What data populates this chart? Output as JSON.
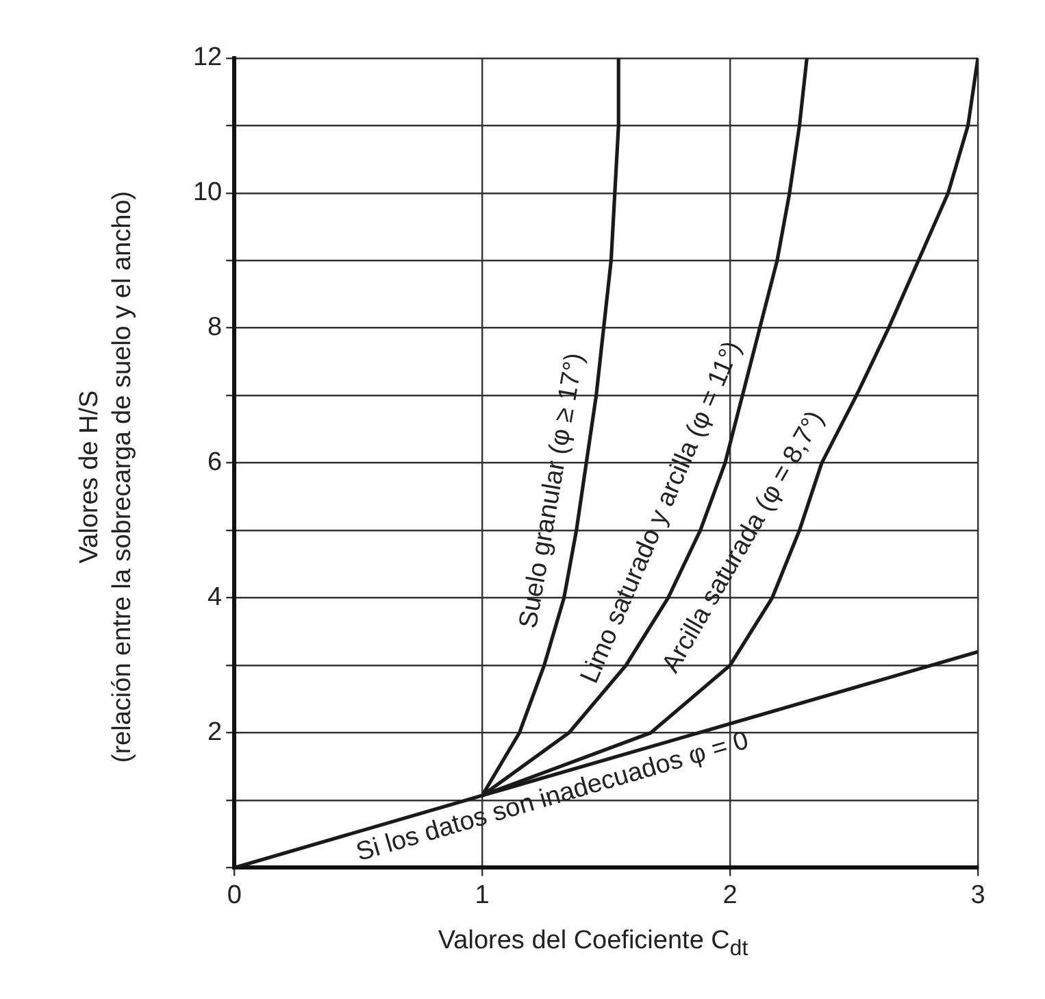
{
  "chart_data": {
    "type": "line",
    "xlabel": "Valores del Coeficiente C$_{dt}$",
    "ylabel": "Valores de H/S\n(relación entre la sobrecarga de suelo y el ancho)",
    "xlim": [
      0,
      3
    ],
    "xticks": [
      0,
      1,
      2,
      3
    ],
    "ylim": [
      0,
      12
    ],
    "yticks": [
      {
        "value": 0,
        "label": null
      },
      {
        "value": 1,
        "label": null
      },
      2,
      {
        "value": 3,
        "label": null
      },
      4,
      {
        "value": 5,
        "label": null
      },
      6,
      {
        "value": 7,
        "label": null
      },
      8,
      {
        "value": 9,
        "label": null
      },
      10,
      {
        "value": 11,
        "label": null
      },
      12
    ],
    "grid": true,
    "legend": false,
    "marker": "none",
    "line_style": "solid",
    "series": [
      {
        "name": "Suelo granular (φ ≥ 17°)",
        "color": "#1a1a1a",
        "x": [
          1,
          1.15,
          1.25,
          1.33,
          1.38,
          1.42,
          1.46,
          1.49,
          1.52,
          1.535,
          1.55,
          1.55
        ],
        "values": [
          1.07,
          2,
          3,
          4,
          5,
          6,
          7,
          8,
          9,
          10,
          11,
          12
        ]
      },
      {
        "name": "Limo saturado y arcilla (φ = 11°)",
        "color": "#1a1a1a",
        "x": [
          1,
          1.35,
          1.58,
          1.75,
          1.88,
          1.98,
          2.05,
          2.12,
          2.19,
          2.24,
          2.28,
          2.31
        ],
        "values": [
          1.07,
          2,
          3,
          4,
          5,
          6,
          7,
          8,
          9,
          10,
          11,
          12
        ]
      },
      {
        "name": "Arcilla saturada (φ = 8,7°)",
        "color": "#1a1a1a",
        "x": [
          1,
          1.68,
          2,
          2.17,
          2.28,
          2.37,
          2.51,
          2.64,
          2.76,
          2.88,
          2.96,
          3
        ],
        "values": [
          1.07,
          2,
          3,
          4,
          5,
          6,
          7,
          8,
          9,
          10,
          11,
          12
        ]
      },
      {
        "name": "Si los datos son inadecuados φ = 0",
        "color": "#1a1a1a",
        "x": [
          0,
          1,
          3
        ],
        "values": [
          0,
          1.07,
          3.2
        ]
      }
    ]
  }
}
